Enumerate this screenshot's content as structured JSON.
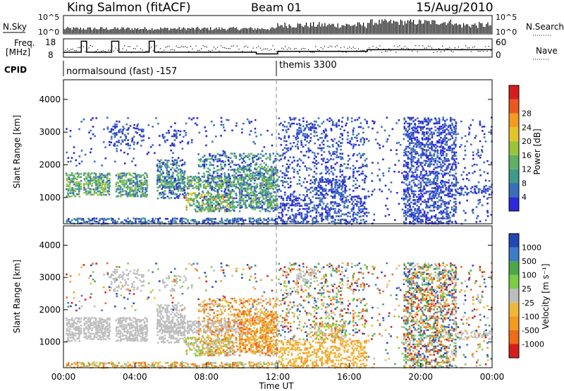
{
  "header": {
    "radar": "King Salmon (fitACF)",
    "beam": "Beam 01",
    "date": "15/Aug/2010"
  },
  "top_panels": {
    "nsky_label": "N.Sky",
    "nsky_ticks": [
      "10^5",
      "10^0"
    ],
    "nsearch_label": "N.Search",
    "nsearch_ticks": [
      "10^5",
      "10^0"
    ],
    "freq_label_1": "Freq.",
    "freq_label_2": "[MHz]",
    "freq_ticks": [
      "18",
      "8"
    ],
    "nave_label": "Nave",
    "nave_ticks": [
      "60",
      "0"
    ],
    "cpid_label": "CPID",
    "cpid_1": "normalsound (fast) -157",
    "cpid_2": "themis 3300"
  },
  "chart_data": [
    {
      "type": "heatmap",
      "title": "Power",
      "ylabel": "Slant Range [km]",
      "yticks": [
        "1000",
        "2000",
        "3000",
        "4000"
      ],
      "ylim": [
        200,
        4600
      ],
      "colorbar_label": "Power [dB]",
      "colorbar_ticks": [
        "4",
        "8",
        "12",
        "16",
        "20",
        "24",
        "28"
      ],
      "colorbar_colors": [
        "#2b2bd9",
        "#3a6fb8",
        "#3e9a8a",
        "#5fb062",
        "#9ac43a",
        "#e3c529",
        "#f39b1f",
        "#e8591f",
        "#d41e1e"
      ]
    },
    {
      "type": "heatmap",
      "title": "Velocity",
      "ylabel": "Slant Range [km]",
      "xlabel": "Time UT",
      "xticks": [
        "00:00",
        "04:00",
        "08:00",
        "12:00",
        "16:00",
        "20:00",
        "00:00"
      ],
      "yticks": [
        "1000",
        "2000",
        "3000",
        "4000"
      ],
      "ylim": [
        200,
        4600
      ],
      "colorbar_label": "Velocity [m s⁻¹]",
      "colorbar_ticks": [
        "1000",
        "500",
        "100",
        "25",
        "-25",
        "-100",
        "-500",
        "-1000"
      ],
      "colorbar_colors": [
        "#2448b3",
        "#3b7dc9",
        "#4aa84a",
        "#7ccc44",
        "#bdbdbd",
        "#f0b83a",
        "#f39b1f",
        "#ee6b1a",
        "#d41e1e"
      ]
    }
  ]
}
